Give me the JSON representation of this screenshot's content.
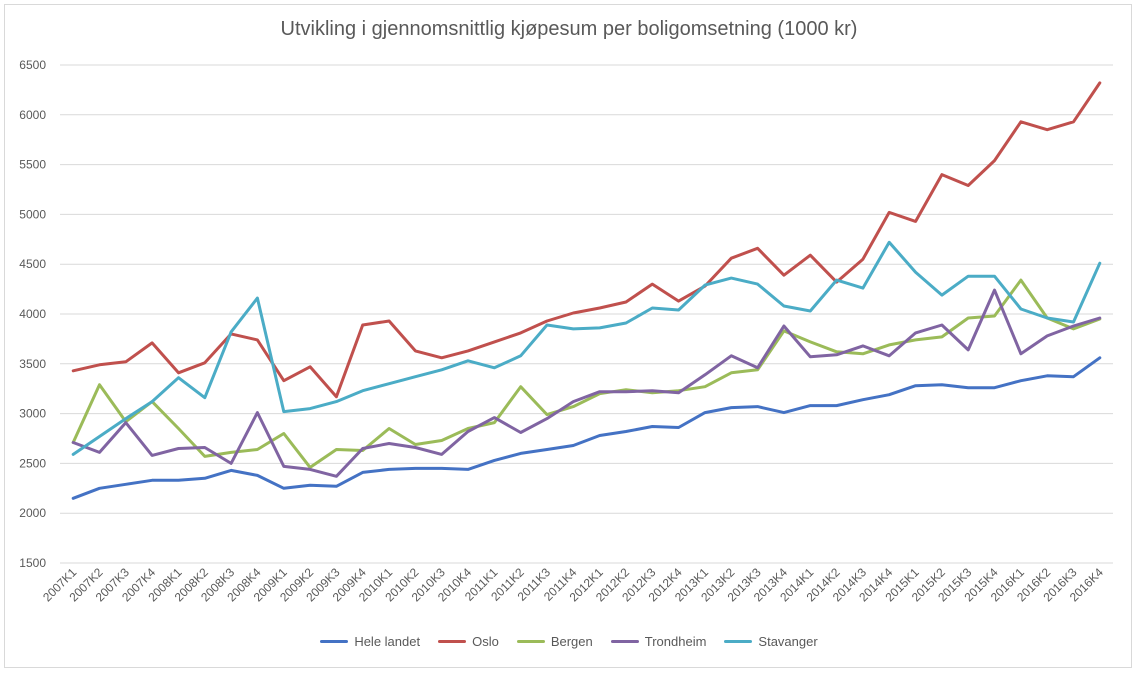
{
  "chart_data": {
    "type": "line",
    "title": "Utvikling i gjennomsnittlig kjøpesum per boligomsetning (1000 kr)",
    "xlabel": "",
    "ylabel": "",
    "ylim": [
      1500,
      6500
    ],
    "yticks": [
      1500,
      2000,
      2500,
      3000,
      3500,
      4000,
      4500,
      5000,
      5500,
      6000,
      6500
    ],
    "grid": true,
    "legend": "bottom",
    "categories": [
      "2007K1",
      "2007K2",
      "2007K3",
      "2007K4",
      "2008K1",
      "2008K2",
      "2008K3",
      "2008K4",
      "2009K1",
      "2009K2",
      "2009K3",
      "2009K4",
      "2010K1",
      "2010K2",
      "2010K3",
      "2010K4",
      "2011K1",
      "2011K2",
      "2011K3",
      "2011K4",
      "2012K1",
      "2012K2",
      "2012K3",
      "2012K4",
      "2013K1",
      "2013K2",
      "2013K3",
      "2013K4",
      "2014K1",
      "2014K2",
      "2014K3",
      "2014K4",
      "2015K1",
      "2015K2",
      "2015K3",
      "2015K4",
      "2016K1",
      "2016K2",
      "2016K3",
      "2016K4"
    ],
    "series": [
      {
        "name": "Hele landet",
        "color": "#4472c4",
        "values": [
          2150,
          2250,
          2290,
          2330,
          2330,
          2350,
          2430,
          2380,
          2250,
          2280,
          2270,
          2410,
          2440,
          2450,
          2450,
          2440,
          2530,
          2600,
          2640,
          2680,
          2780,
          2820,
          2870,
          2860,
          3010,
          3060,
          3070,
          3010,
          3080,
          3080,
          3140,
          3190,
          3280,
          3290,
          3260,
          3260,
          3330,
          3380,
          3370,
          3560
        ]
      },
      {
        "name": "Oslo",
        "color": "#c0504d",
        "values": [
          3430,
          3490,
          3520,
          3710,
          3410,
          3510,
          3800,
          3740,
          3330,
          3470,
          3170,
          3890,
          3930,
          3630,
          3560,
          3630,
          3720,
          3810,
          3930,
          4010,
          4060,
          4120,
          4300,
          4130,
          4280,
          4560,
          4660,
          4390,
          4590,
          4320,
          4550,
          5020,
          4930,
          5400,
          5290,
          5540,
          5930,
          5850,
          5930,
          6320
        ]
      },
      {
        "name": "Bergen",
        "color": "#9bbb59",
        "values": [
          2710,
          3290,
          2920,
          3120,
          2850,
          2570,
          2610,
          2640,
          2800,
          2460,
          2640,
          2630,
          2850,
          2690,
          2730,
          2850,
          2910,
          3270,
          2990,
          3070,
          3200,
          3240,
          3210,
          3230,
          3270,
          3410,
          3440,
          3830,
          3720,
          3620,
          3600,
          3690,
          3740,
          3770,
          3960,
          3980,
          4340,
          3960,
          3850,
          3950
        ]
      },
      {
        "name": "Trondheim",
        "color": "#8064a2",
        "values": [
          2710,
          2610,
          2910,
          2580,
          2650,
          2660,
          2500,
          3010,
          2470,
          2440,
          2370,
          2650,
          2700,
          2660,
          2590,
          2820,
          2960,
          2810,
          2950,
          3120,
          3220,
          3220,
          3230,
          3210,
          3390,
          3580,
          3460,
          3880,
          3570,
          3590,
          3680,
          3580,
          3810,
          3890,
          3640,
          4240,
          3600,
          3780,
          3880,
          3960
        ]
      },
      {
        "name": "Stavanger",
        "color": "#4bacc6",
        "values": [
          2590,
          2770,
          2950,
          3120,
          3360,
          3160,
          3820,
          4160,
          3020,
          3050,
          3120,
          3230,
          3300,
          3370,
          3440,
          3530,
          3460,
          3580,
          3890,
          3850,
          3860,
          3910,
          4060,
          4040,
          4290,
          4360,
          4300,
          4080,
          4030,
          4340,
          4260,
          4720,
          4420,
          4190,
          4380,
          4380,
          4050,
          3960,
          3920,
          4510
        ]
      }
    ]
  }
}
